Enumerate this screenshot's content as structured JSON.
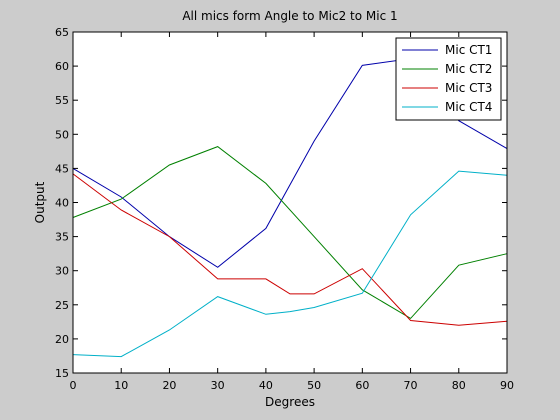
{
  "chart_data": {
    "type": "line",
    "title": "All mics form Angle to Mic2 to Mic 1",
    "xlabel": "Degrees",
    "ylabel": "Output",
    "xlim": [
      0,
      90
    ],
    "ylim": [
      15,
      65
    ],
    "xticks": [
      0,
      10,
      20,
      30,
      40,
      50,
      60,
      70,
      80,
      90
    ],
    "yticks": [
      15,
      20,
      25,
      30,
      35,
      40,
      45,
      50,
      55,
      60,
      65
    ],
    "grid": false,
    "legend_position": "top-right",
    "series": [
      {
        "name": "Mic CT1",
        "color": "#0000aa",
        "x": [
          0,
          10,
          20,
          30,
          40,
          50,
          60,
          70,
          80,
          90
        ],
        "y": [
          45.0,
          40.8,
          35.0,
          30.5,
          36.2,
          49.0,
          60.1,
          61.1,
          52.0,
          47.9
        ]
      },
      {
        "name": "Mic CT2",
        "color": "#008000",
        "x": [
          0,
          10,
          20,
          30,
          40,
          50,
          60,
          70,
          80,
          90
        ],
        "y": [
          37.8,
          40.5,
          45.5,
          48.2,
          42.8,
          35.0,
          27.2,
          23.0,
          30.8,
          32.5
        ]
      },
      {
        "name": "Mic CT3",
        "color": "#cc0000",
        "x": [
          0,
          10,
          20,
          30,
          40,
          45,
          50,
          60,
          70,
          80,
          90
        ],
        "y": [
          44.2,
          38.9,
          35.0,
          28.8,
          28.8,
          26.6,
          26.6,
          30.3,
          22.7,
          22.0,
          22.6
        ]
      },
      {
        "name": "Mic CT4",
        "color": "#00b0c8",
        "x": [
          0,
          10,
          20,
          30,
          40,
          45,
          50,
          60,
          70,
          80,
          90
        ],
        "y": [
          17.7,
          17.4,
          21.3,
          26.2,
          23.6,
          24.0,
          24.6,
          26.7,
          38.2,
          44.6,
          44.0
        ]
      }
    ]
  }
}
